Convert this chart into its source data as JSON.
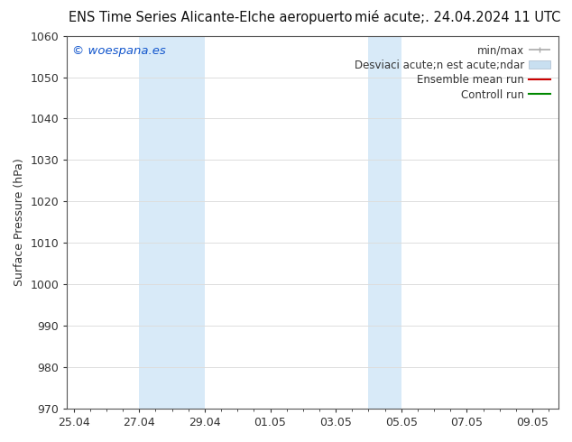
{
  "title": "ENS Time Series Alicante-Elche aeropuerto",
  "title_right": "mi  acute;.  24.04.2024 11 UTC",
  "title_right_raw": "mi  acute;.  24.04.2024 11 UTC",
  "ylabel": "Surface Pressure (hPa)",
  "ylim": [
    970,
    1060
  ],
  "yticks": [
    970,
    980,
    990,
    1000,
    1010,
    1020,
    1030,
    1040,
    1050,
    1060
  ],
  "xtick_labels": [
    "25.04",
    "27.04",
    "29.04",
    "01.05",
    "03.05",
    "05.05",
    "07.05",
    "09.05"
  ],
  "xtick_positions": [
    0,
    2,
    4,
    6,
    8,
    10,
    12,
    14
  ],
  "xlim": [
    -0.2,
    14.8
  ],
  "watermark": "© woespana.es",
  "watermark_color": "#1155cc",
  "background_color": "#ffffff",
  "plot_bg_color": "#ffffff",
  "shaded_regions": [
    {
      "xstart": 2,
      "xend": 4,
      "color": "#d8eaf8"
    },
    {
      "xstart": 9,
      "xend": 10,
      "color": "#d8eaf8"
    }
  ],
  "legend_min_max_color": "#aaaaaa",
  "legend_std_color": "#c8dff0",
  "legend_mean_color": "#cc0000",
  "legend_control_color": "#008800",
  "grid_color": "#dddddd",
  "spine_color": "#555555",
  "tick_color": "#333333",
  "figsize": [
    6.34,
    4.9
  ],
  "dpi": 100,
  "title_fontsize": 10.5,
  "ylabel_fontsize": 9,
  "tick_fontsize": 9,
  "legend_fontsize": 8.5,
  "watermark_fontsize": 9.5
}
